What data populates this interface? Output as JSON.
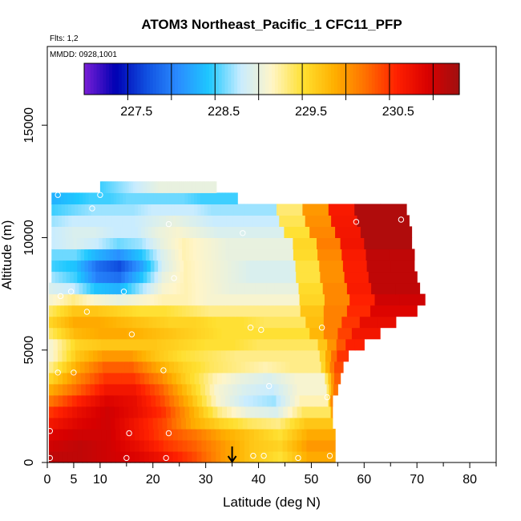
{
  "chart_data": {
    "type": "heatmap",
    "title": "ATOM3 Northeast_Pacific_1 CFC11_PFP",
    "flights_label": "Flts: 1,2",
    "date_label": "MMDD: 0928,1001",
    "xlabel": "Latitude (deg N)",
    "ylabel": "Altitude (m)",
    "xlim": [
      0,
      85
    ],
    "ylim": [
      0,
      18500
    ],
    "x_ticks": [
      0,
      5,
      10,
      20,
      30,
      40,
      50,
      60,
      70,
      80
    ],
    "x_minor_ticks": [
      15,
      25,
      35,
      45,
      55,
      65,
      75,
      85
    ],
    "y_ticks": [
      0,
      5000,
      10000,
      15000
    ],
    "colorbar": {
      "range": [
        226.9,
        231.2
      ],
      "tick_values": [
        227.5,
        228.5,
        229.5,
        230.5
      ],
      "divisions": [
        227.4,
        227.9,
        228.4,
        228.9,
        229.4,
        229.9,
        230.4,
        230.9
      ],
      "colors": [
        "#7a1fd6",
        "#0000b3",
        "#1050e0",
        "#2a8cff",
        "#1ec8ff",
        "#c8ecff",
        "#fff5c8",
        "#ffe030",
        "#ffb000",
        "#ff7000",
        "#ff2000",
        "#d80000",
        "#a01010"
      ]
    },
    "field": {
      "altitudes": [
        0,
        500,
        1000,
        1500,
        2000,
        2500,
        3000,
        3500,
        4000,
        4500,
        5000,
        5500,
        6000,
        6500,
        7000,
        7500,
        8000,
        8500,
        9000,
        9500,
        10000,
        10500,
        11000,
        11500,
        12000
      ],
      "x_start": [
        0.3,
        0.3,
        0.3,
        0.3,
        0.3,
        0.3,
        0.3,
        0.3,
        0.3,
        0.3,
        0.3,
        0.3,
        0.3,
        0.3,
        0.3,
        0.3,
        0.8,
        0.8,
        0.8,
        0.8,
        0.8,
        0.8,
        0.8,
        0.8,
        10
      ],
      "x_end": [
        54.5,
        54.5,
        54.5,
        54,
        53.5,
        53,
        52.5,
        52,
        51,
        50.5,
        49.5,
        47,
        45.5,
        43.5,
        43,
        43,
        42.5,
        42.5,
        42,
        42,
        40,
        39,
        38.5,
        36,
        32
      ],
      "values": [
        [
          231.0,
          231.0,
          230.9,
          230.8,
          230.6,
          230.3,
          229.9,
          229.6,
          229.4,
          229.8
        ],
        [
          230.9,
          231.0,
          230.9,
          230.7,
          230.4,
          230.2,
          229.9,
          229.6,
          229.5,
          229.9
        ],
        [
          230.8,
          230.9,
          230.9,
          230.6,
          230.3,
          230.1,
          229.8,
          229.6,
          229.4,
          229.8
        ],
        [
          230.6,
          230.8,
          230.9,
          230.6,
          230.3,
          229.8,
          229.5,
          229.3,
          229.2,
          229.6
        ],
        [
          230.4,
          230.7,
          230.9,
          230.7,
          230.4,
          229.8,
          229.2,
          228.9,
          228.8,
          229.3
        ],
        [
          230.1,
          230.5,
          230.8,
          230.7,
          230.3,
          229.7,
          229.0,
          228.7,
          228.6,
          229.1
        ],
        [
          229.8,
          230.2,
          230.6,
          230.6,
          230.2,
          229.6,
          229.0,
          228.8,
          228.7,
          229.0
        ],
        [
          229.5,
          230.0,
          230.4,
          230.4,
          230.0,
          229.5,
          229.1,
          228.9,
          228.8,
          229.0
        ],
        [
          229.2,
          229.8,
          230.2,
          230.2,
          229.8,
          229.5,
          229.3,
          229.2,
          229.1,
          229.2
        ],
        [
          229.0,
          229.6,
          229.9,
          229.9,
          229.6,
          229.4,
          229.3,
          229.2,
          229.2,
          229.2
        ],
        [
          229.0,
          229.5,
          229.6,
          229.6,
          229.6,
          229.5,
          229.4,
          229.4,
          229.3,
          229.3
        ],
        [
          229.3,
          229.7,
          229.8,
          229.8,
          229.7,
          229.6,
          229.5,
          229.4,
          229.4,
          229.4
        ],
        [
          229.5,
          229.8,
          229.8,
          229.7,
          229.6,
          229.5,
          229.5,
          229.4,
          229.4,
          229.3
        ],
        [
          229.3,
          229.6,
          229.6,
          229.5,
          229.4,
          229.4,
          229.3,
          229.2,
          229.2,
          229.2
        ],
        [
          229.0,
          229.2,
          229.0,
          228.9,
          229.0,
          229.1,
          229.1,
          229.0,
          229.0,
          229.0
        ],
        [
          228.8,
          228.7,
          228.3,
          228.2,
          228.6,
          229.0,
          229.1,
          229.0,
          228.9,
          228.9
        ],
        [
          228.6,
          228.4,
          227.9,
          227.8,
          228.3,
          228.9,
          229.1,
          229.0,
          228.9,
          228.8
        ],
        [
          228.4,
          228.3,
          227.8,
          227.6,
          228.1,
          228.8,
          229.1,
          229.0,
          228.9,
          228.8
        ],
        [
          228.5,
          228.5,
          228.2,
          228.0,
          228.3,
          228.8,
          229.1,
          229.0,
          228.9,
          228.9
        ],
        [
          228.7,
          228.8,
          228.7,
          228.5,
          228.6,
          228.9,
          229.1,
          229.0,
          228.9,
          228.9
        ],
        [
          228.7,
          228.8,
          228.8,
          228.7,
          228.7,
          228.9,
          229.0,
          228.9,
          228.8,
          228.8
        ],
        [
          228.6,
          228.7,
          228.7,
          228.7,
          228.7,
          228.8,
          228.9,
          228.8,
          228.7,
          228.7
        ],
        [
          228.4,
          228.5,
          228.6,
          228.6,
          228.6,
          228.7,
          228.7,
          228.7,
          228.6,
          228.6
        ],
        [
          228.2,
          228.3,
          228.4,
          228.4,
          228.5,
          228.5,
          228.5,
          228.5,
          228.4,
          228.4
        ],
        [
          228.4,
          228.5,
          228.6,
          228.7,
          228.8,
          228.9,
          228.9,
          228.9,
          228.9,
          228.9
        ]
      ],
      "right_values": [
        [
          229.9,
          229.8,
          229.5
        ],
        [
          229.9,
          229.8,
          229.6
        ],
        [
          229.8,
          229.7,
          229.5
        ],
        [
          229.6,
          229.5,
          229.4
        ],
        [
          229.4,
          229.5,
          229.6
        ],
        [
          229.4,
          229.6,
          229.8
        ],
        [
          229.5,
          229.7,
          229.9
        ],
        [
          229.6,
          229.8,
          230.0
        ],
        [
          229.7,
          229.9,
          230.0
        ],
        [
          229.8,
          230.0,
          230.1
        ],
        [
          229.8,
          229.9,
          230.0
        ],
        [
          229.7,
          229.8,
          229.9
        ],
        [
          229.6,
          229.7,
          229.8
        ],
        [
          229.5,
          229.6,
          229.7
        ],
        [
          229.4,
          229.5,
          229.6
        ],
        [
          229.3,
          229.4,
          229.5
        ],
        [
          229.2,
          229.3,
          229.4
        ],
        [
          229.1,
          229.2,
          229.3
        ],
        [
          229.0,
          229.1,
          229.2
        ],
        [
          229.0,
          229.1,
          229.1
        ],
        [
          229.0,
          229.0,
          229.0
        ],
        [
          229.0,
          229.0,
          229.0
        ],
        [
          229.0,
          229.0,
          229.0
        ],
        [
          229.0,
          229.0,
          229.0
        ],
        [
          229.0,
          229.0,
          229.0
        ]
      ]
    },
    "sample_points": [
      [
        0.5,
        200
      ],
      [
        15,
        200
      ],
      [
        22.5,
        200
      ],
      [
        39,
        300
      ],
      [
        41,
        300
      ],
      [
        47.5,
        200
      ],
      [
        53.5,
        300
      ],
      [
        0.5,
        1400
      ],
      [
        15.5,
        1300
      ],
      [
        23,
        1300
      ],
      [
        53,
        2900
      ],
      [
        42,
        3400
      ],
      [
        2,
        4000
      ],
      [
        5,
        4000
      ],
      [
        22,
        4100
      ],
      [
        16,
        5700
      ],
      [
        38.5,
        6000
      ],
      [
        40.5,
        5900
      ],
      [
        52,
        6000
      ],
      [
        70.5,
        6000
      ],
      [
        7.5,
        6700
      ],
      [
        2.5,
        7400
      ],
      [
        4.5,
        7600
      ],
      [
        14.5,
        7600
      ],
      [
        24,
        8200
      ],
      [
        37,
        10200
      ],
      [
        23,
        10600
      ],
      [
        58.5,
        10700
      ],
      [
        67,
        10800
      ],
      [
        2,
        11900
      ],
      [
        10,
        11900
      ],
      [
        8.5,
        11300
      ]
    ],
    "right_region": {
      "rows_alt": [
        500,
        1000,
        1500,
        2000,
        2500,
        3000,
        3500,
        4000,
        4500,
        5000,
        5500,
        6000,
        6500,
        7000,
        7500,
        8000,
        8500,
        9000,
        9500,
        10000,
        10500,
        11000
      ],
      "x_end": [
        54,
        54,
        54,
        54,
        54,
        55,
        55.5,
        56,
        57,
        60,
        63,
        66,
        70,
        71.5,
        70.5,
        70,
        69.5,
        69.5,
        69,
        69,
        68.5,
        68
      ],
      "values": [
        230.0,
        230.0,
        229.9,
        229.9,
        230.0,
        230.1,
        230.2,
        230.3,
        230.4,
        230.5,
        230.6,
        230.7,
        230.8,
        230.9,
        231.0,
        231.0,
        231.0,
        231.0,
        231.1,
        231.1,
        231.1,
        231.1
      ]
    },
    "marker_arrow_latitude": 35
  }
}
